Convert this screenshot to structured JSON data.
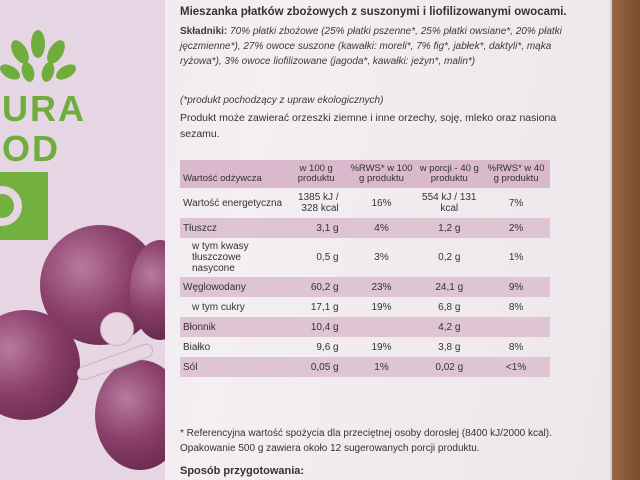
{
  "brand": {
    "logo_line1": "URA",
    "logo_line2": "OD",
    "logo_line3": "O",
    "accent_color": "#72b03f",
    "grape_color": "#8a3f6a"
  },
  "product": {
    "title": "Mieszanka płatków zbożowych z suszonymi i liofilizowanymi owocami.",
    "ingredients_label": "Składniki:",
    "ingredients_text": "70% płatki zbożowe (25% płatki pszenne*, 25% płatki owsiane*, 20% płatki jęczmienne*), 27% owoce suszone (kawałki: moreli*, 7% fig*, jabłek*, daktyli*, mąka ryżowa*), 3% owoce liofilizowane (jagoda*, kawałki: jeżyn*, malin*)",
    "organic_note": "(*produkt pochodzący z upraw ekologicznych)",
    "allergens": "Produkt może zawierać orzeszki ziemne i inne orzechy, soję, mleko oraz nasiona sezamu."
  },
  "nutrition": {
    "headers": [
      "Wartość odżywcza",
      "w 100 g produktu",
      "%RWS* w 100 g produktu",
      "w porcji - 40 g produktu",
      "%RWS* w 40 g produktu"
    ],
    "rows": [
      {
        "label": "Wartość energetyczna",
        "c1": "1385 kJ / 328 kcal",
        "c2": "16%",
        "c3": "554 kJ / 131 kcal",
        "c4": "7%"
      },
      {
        "label": "Tłuszcz",
        "c1": "3,1 g",
        "c2": "4%",
        "c3": "1,2 g",
        "c4": "2%"
      },
      {
        "label": "w tym kwasy tłuszczowe nasycone",
        "c1": "0,5 g",
        "c2": "3%",
        "c3": "0,2 g",
        "c4": "1%"
      },
      {
        "label": "Węglowodany",
        "c1": "60,2 g",
        "c2": "23%",
        "c3": "24,1 g",
        "c4": "9%"
      },
      {
        "label": "w tym cukry",
        "c1": "17,1 g",
        "c2": "19%",
        "c3": "6,8 g",
        "c4": "8%"
      },
      {
        "label": "Błonnik",
        "c1": "10,4 g",
        "c2": "",
        "c3": "4,2 g",
        "c4": ""
      },
      {
        "label": "Białko",
        "c1": "9,6 g",
        "c2": "19%",
        "c3": "3,8 g",
        "c4": "8%"
      },
      {
        "label": "Sól",
        "c1": "0,05 g",
        "c2": "1%",
        "c3": "0,02 g",
        "c4": "<1%"
      }
    ]
  },
  "reference": {
    "line1": "* Referencyjna wartość spożycia dla przeciętnej osoby dorosłej (8400 kJ/2000 kcal).",
    "line2": "Opakowanie 500 g zawiera około 12 sugerowanych porcji produktu."
  },
  "preparation_heading": "Sposób przygotowania:"
}
